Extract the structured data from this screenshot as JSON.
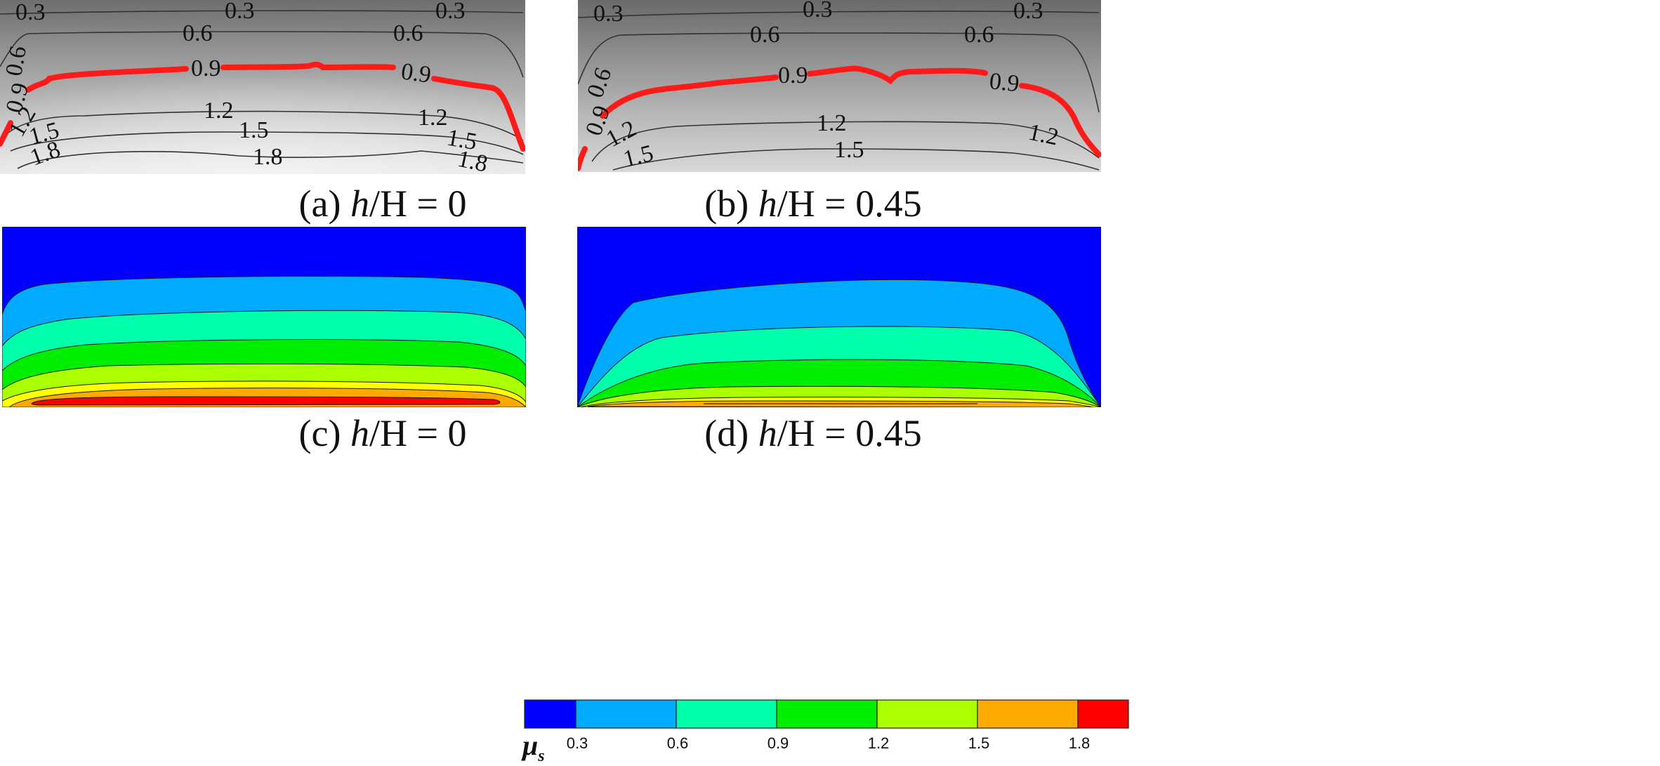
{
  "panels": [
    {
      "id": "a",
      "caption_prefix": "(a) ",
      "caption_var": "h",
      "caption_rest": "/H = 0"
    },
    {
      "id": "b",
      "caption_prefix": "(b) ",
      "caption_var": "h",
      "caption_rest": "/H = 0.45"
    },
    {
      "id": "c",
      "caption_prefix": "(c) ",
      "caption_var": "h",
      "caption_rest": "/H = 0"
    },
    {
      "id": "d",
      "caption_prefix": "(d) ",
      "caption_var": "h",
      "caption_rest": "/H = 0.45"
    }
  ],
  "contour_labels": {
    "a": [
      "0.3",
      "0.3",
      "0.3",
      "0.6",
      "0.6",
      "0.6",
      "0.9",
      "0.9",
      "0.9",
      "1.2",
      "1.2",
      "1.2",
      "1.5",
      "1.5",
      "1.5",
      "1.8",
      "1.8",
      "1.8"
    ],
    "b": [
      "0.3",
      "0.3",
      "0.3",
      "0.6",
      "0.6",
      "0.6",
      "0.9",
      "0.9",
      "0.9",
      "1.2",
      "1.2",
      "1.2",
      "1.5",
      "1.5"
    ]
  },
  "colorbar": {
    "symbol": "μ",
    "subscript": "s",
    "ticks": [
      "0.3",
      "0.6",
      "0.9",
      "1.2",
      "1.5",
      "1.8"
    ],
    "colors": [
      "#0000ff",
      "#00aaff",
      "#00ffaa",
      "#00ee00",
      "#aaff00",
      "#ffaa00",
      "#ff0000"
    ]
  },
  "highlight_color": "#ff1a1a"
}
